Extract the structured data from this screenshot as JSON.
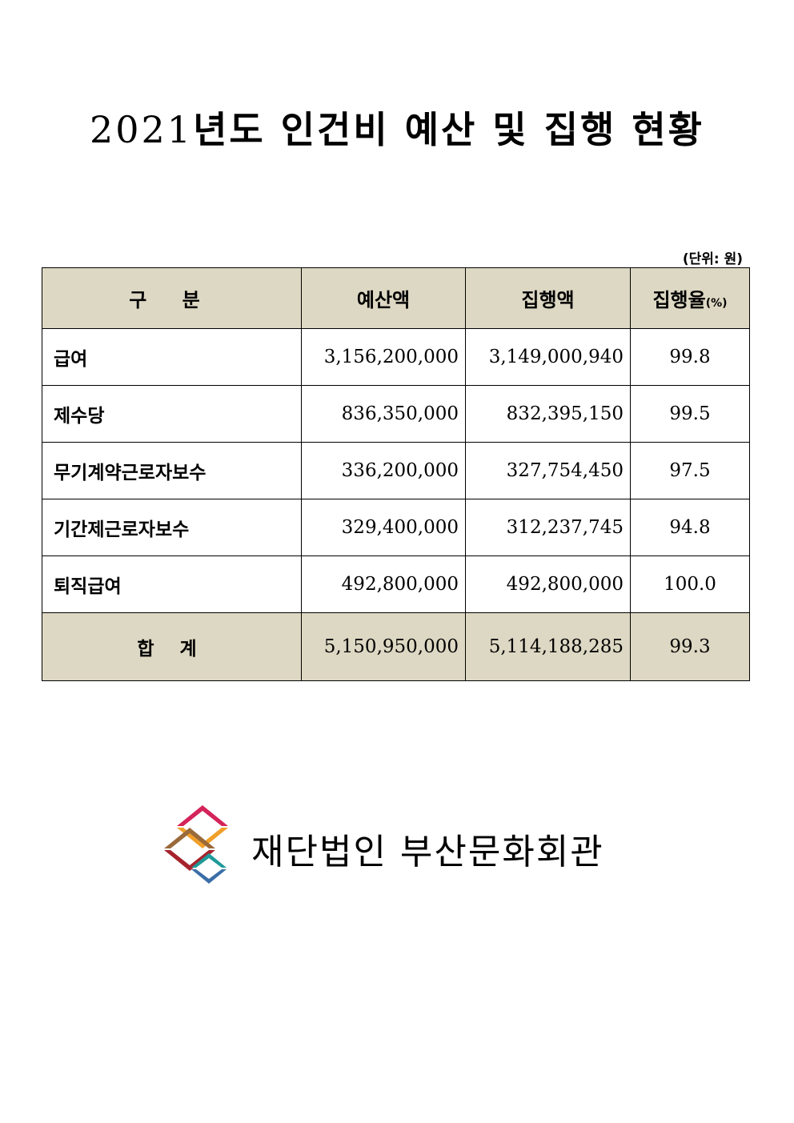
{
  "document": {
    "title_year": "2021",
    "title_rest": "년도 인건비 예산 및 집행 현황",
    "unit_note": "(단위: 원)"
  },
  "table": {
    "headers": [
      "구 분",
      "예산액",
      "집행액",
      "집행율",
      "(%)"
    ],
    "rows": [
      {
        "label": "급여",
        "budget": "3,156,200,000",
        "executed": "3,149,000,940",
        "rate": "99.8"
      },
      {
        "label": "제수당",
        "budget": "836,350,000",
        "executed": "832,395,150",
        "rate": "99.5"
      },
      {
        "label": "무기계약근로자보수",
        "budget": "336,200,000",
        "executed": "327,754,450",
        "rate": "97.5"
      },
      {
        "label": "기간제근로자보수",
        "budget": "329,400,000",
        "executed": "312,237,745",
        "rate": "94.8"
      },
      {
        "label": "퇴직급여",
        "budget": "492,800,000",
        "executed": "492,800,000",
        "rate": "100.0"
      }
    ],
    "total": {
      "label": "합 계",
      "budget": "5,150,950,000",
      "executed": "5,114,188,285",
      "rate": "99.3"
    }
  },
  "footer": {
    "org_name": "재단법인 부산문화회관",
    "logo_icon": "busan-cultural-center-logo-icon"
  },
  "colors": {
    "header_bg": "#ddd8c3",
    "logo_magenta": "#d4245a",
    "logo_orange": "#f0a02a",
    "logo_brown": "#9a6a3a",
    "logo_darkred": "#a6232e",
    "logo_teal": "#1f9a9a",
    "logo_blue": "#3a6ea8"
  }
}
